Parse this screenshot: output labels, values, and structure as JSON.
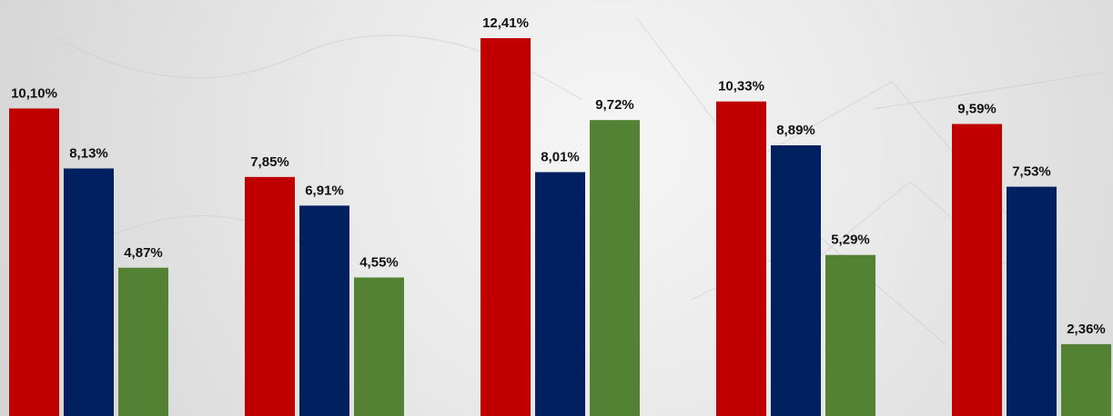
{
  "chart_data": {
    "type": "bar",
    "series": [
      {
        "color": "#c00000",
        "values": [
          10.1,
          7.85,
          12.41,
          10.33,
          9.59
        ],
        "labels": [
          "10,10%",
          "7,85%",
          "12,41%",
          "10,33%",
          "9,59%"
        ]
      },
      {
        "color": "#002060",
        "values": [
          8.13,
          6.91,
          8.01,
          8.89,
          7.53
        ],
        "labels": [
          "8,13%",
          "6,91%",
          "8,01%",
          "8,89%",
          "7,53%"
        ]
      },
      {
        "color": "#548235",
        "values": [
          4.87,
          4.55,
          9.72,
          5.29,
          2.36
        ],
        "labels": [
          "4,87%",
          "4,55%",
          "9,72%",
          "5,29%",
          "2,36%"
        ]
      }
    ],
    "ylim": [
      0,
      12.41
    ],
    "grid": false,
    "legend": false
  }
}
